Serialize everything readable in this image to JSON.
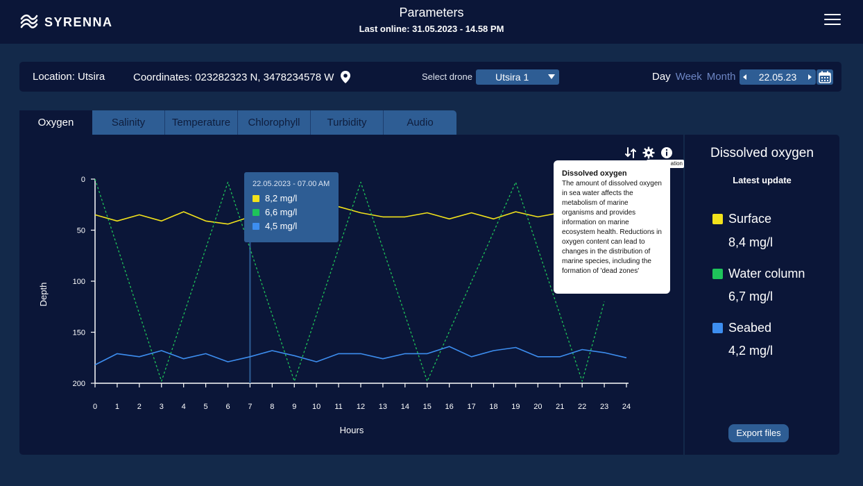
{
  "header": {
    "brand": "SYRENNA",
    "title": "Parameters",
    "last_online": "Last online: 31.05.2023 - 14.58 PM"
  },
  "infobar": {
    "location": "Location: Utsira",
    "coordinates": "Coordinates: 023282323 N, 3478234578 W",
    "select_drone_label": "Select drone",
    "drone_value": "Utsira 1",
    "period_day": "Day",
    "period_week": "Week",
    "period_month": "Month",
    "date_value": "22.05.23"
  },
  "tabs": [
    {
      "label": "Oxygen",
      "active": true
    },
    {
      "label": "Salinity",
      "active": false
    },
    {
      "label": "Temperature",
      "active": false
    },
    {
      "label": "Chlorophyll",
      "active": false
    },
    {
      "label": "Turbidity",
      "active": false
    },
    {
      "label": "Audio",
      "active": false
    }
  ],
  "tooltip": {
    "date": "22.05.2023 - 07.00 AM",
    "rows": [
      {
        "value": "8,2 mg/l",
        "color": "#f2e21b"
      },
      {
        "value": "6,6 mg/l",
        "color": "#1ec45a"
      },
      {
        "value": "4,5 mg/l",
        "color": "#3d8ef0"
      }
    ]
  },
  "info_popup": {
    "title": "Dissolved oxygen",
    "body": "The amount of dissolved oxygen in sea water affects the metabolism of marine organisms and provides information on marine ecosystem health. Reductions in oxygen content can lead to changes in the distribution of marine species, including the formation of 'dead zones'",
    "hint": "ation"
  },
  "side": {
    "title": "Dissolved oxygen",
    "latest": "Latest update",
    "metrics": [
      {
        "label": "Surface",
        "value": "8,4 mg/l",
        "color": "#f2e21b"
      },
      {
        "label": "Water column",
        "value": "6,7 mg/l",
        "color": "#1ec45a"
      },
      {
        "label": "Seabed",
        "value": "4,2 mg/l",
        "color": "#3d8ef0"
      }
    ],
    "export_label": "Export files"
  },
  "chart_data": {
    "type": "line",
    "xlabel": "Hours",
    "ylabel": "Depth",
    "x": [
      0,
      1,
      2,
      3,
      4,
      5,
      6,
      7,
      8,
      9,
      10,
      11,
      12,
      13,
      14,
      15,
      16,
      17,
      18,
      19,
      20,
      21,
      22,
      23,
      24
    ],
    "xlim": [
      0,
      24
    ],
    "ylim": [
      0,
      200
    ],
    "y_inverted": true,
    "yticks": [
      0,
      50,
      100,
      150,
      200
    ],
    "grid": false,
    "cursor_x": 7,
    "series": [
      {
        "color": "#f2e21b",
        "style": "solid",
        "x": [
          0,
          1,
          2,
          3,
          4,
          5,
          6,
          7,
          8,
          9,
          10,
          11,
          12,
          13,
          14,
          15,
          16,
          17,
          18,
          19,
          20,
          21
        ],
        "y": [
          35,
          41,
          35,
          41,
          32,
          41,
          44,
          37,
          31,
          29,
          27,
          27,
          33,
          37,
          37,
          33,
          39,
          33,
          39,
          32,
          37,
          33
        ]
      },
      {
        "color": "#1ec45a",
        "style": "dashed",
        "x": [
          0,
          3,
          6,
          9,
          12,
          15,
          19,
          22,
          23
        ],
        "y": [
          0,
          198,
          3,
          198,
          3,
          198,
          3,
          198,
          120
        ]
      },
      {
        "color": "#3d8ef0",
        "style": "solid",
        "x": [
          0,
          1,
          2,
          3,
          4,
          5,
          6,
          7,
          8,
          9,
          10,
          11,
          12,
          13,
          14,
          15,
          16,
          17,
          18,
          19,
          20,
          21,
          22,
          23,
          24
        ],
        "y": [
          182,
          171,
          174,
          168,
          176,
          171,
          179,
          174,
          168,
          173,
          179,
          171,
          171,
          176,
          171,
          171,
          164,
          174,
          168,
          165,
          174,
          174,
          167,
          170,
          175
        ]
      }
    ]
  }
}
